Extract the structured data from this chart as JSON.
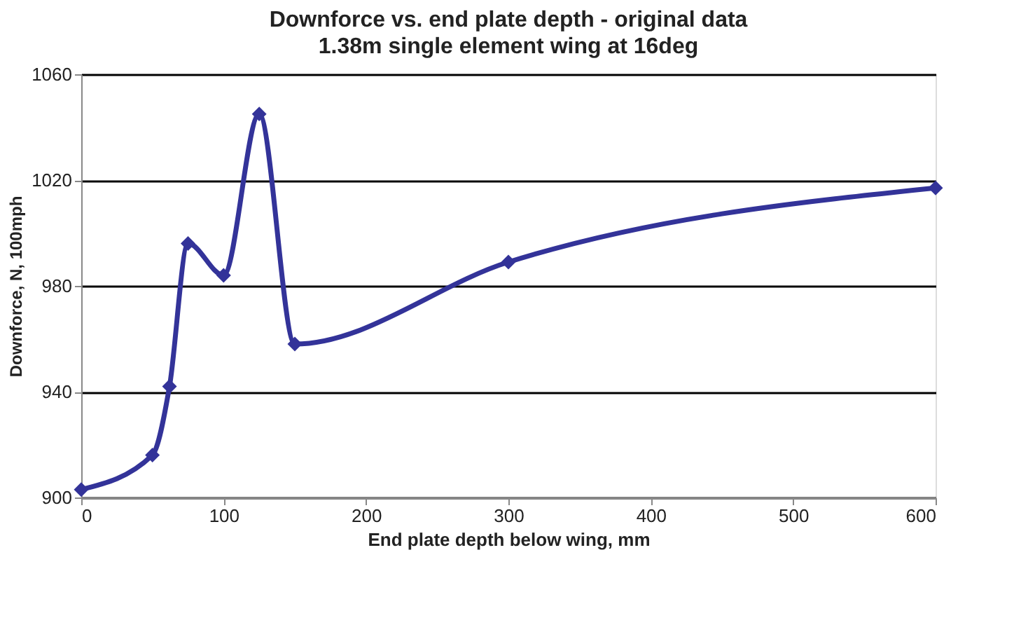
{
  "chart_data": {
    "type": "line",
    "title": "Downforce vs. end plate depth - original data",
    "subtitle": "1.38m single element wing at 16deg",
    "xlabel": "End plate depth below wing, mm",
    "ylabel": "Downforce, N, 100mph",
    "x": [
      0,
      50,
      62,
      75,
      100,
      125,
      150,
      300,
      600
    ],
    "series": [
      {
        "color": "#333399",
        "values": [
          903,
          916,
          942,
          996,
          984,
          1045,
          958,
          989,
          1017
        ]
      }
    ],
    "xlim": [
      0,
      600
    ],
    "xticks": [
      0,
      100,
      200,
      300,
      400,
      500,
      600
    ],
    "ylim": [
      900,
      1060
    ],
    "yticks": [
      900,
      940,
      980,
      1020,
      1060
    ],
    "grid": "y",
    "marker": "diamond",
    "line_style": "solid"
  }
}
